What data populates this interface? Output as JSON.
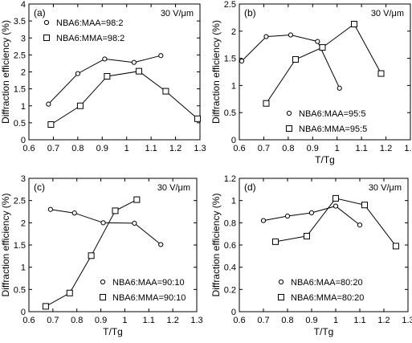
{
  "chart_data": [
    {
      "type": "line",
      "panel_label": "(a)",
      "annotation": "30 V/μm",
      "xlabel": "",
      "ylabel": "Diffraction efficiency (%)",
      "xlim": [
        0.6,
        1.3
      ],
      "ylim": [
        0,
        4
      ],
      "xticks": [
        "0.6",
        "0.7",
        "0.8",
        "0.9",
        "1",
        "1.1",
        "1.2",
        "1.3"
      ],
      "yticks": [
        "0",
        "0.5",
        "1",
        "1.5",
        "2",
        "2.5",
        "3",
        "3.5",
        "4"
      ],
      "legend_position": "top-left",
      "series": [
        {
          "name": "NBA6:MAA=98:2",
          "marker": "circle",
          "x": [
            0.68,
            0.8,
            0.91,
            1.03,
            1.14
          ],
          "y": [
            1.05,
            1.95,
            2.38,
            2.28,
            2.48
          ]
        },
        {
          "name": "NBA6:MMA=98:2",
          "marker": "square",
          "x": [
            0.69,
            0.81,
            0.92,
            1.05,
            1.16,
            1.29
          ],
          "y": [
            0.45,
            1.0,
            1.87,
            2.02,
            1.43,
            0.62
          ]
        }
      ]
    },
    {
      "type": "line",
      "panel_label": "(b)",
      "annotation": "30 V/μm",
      "xlabel": "T/Tg",
      "ylabel": "Diffraction efficiency (%)",
      "xlim": [
        0.6,
        1.3
      ],
      "ylim": [
        0,
        2.5
      ],
      "xticks": [
        "0.6",
        "0.7",
        "0.8",
        "0.9",
        "1",
        "1.1",
        "1.2",
        "1.3"
      ],
      "yticks": [
        "0",
        "0.5",
        "1",
        "1.5",
        "2",
        "2.5"
      ],
      "legend_position": "bottom-right",
      "series": [
        {
          "name": "NBA6:MAA=95:5",
          "marker": "circle",
          "x": [
            0.61,
            0.71,
            0.81,
            0.92,
            1.01
          ],
          "y": [
            1.45,
            1.9,
            1.93,
            1.81,
            0.95
          ]
        },
        {
          "name": "NBA6:MMA=95:5",
          "marker": "square",
          "x": [
            0.71,
            0.83,
            0.94,
            1.07,
            1.18
          ],
          "y": [
            0.67,
            1.48,
            1.7,
            2.13,
            1.22
          ]
        }
      ]
    },
    {
      "type": "line",
      "panel_label": "(c)",
      "annotation": "30 V/μm",
      "xlabel": "T/Tg",
      "ylabel": "Diffraction efficiency (%)",
      "xlim": [
        0.6,
        1.3
      ],
      "ylim": [
        0,
        3
      ],
      "xticks": [
        "0.6",
        "0.7",
        "0.8",
        "0.9",
        "1",
        "1.1",
        "1.2",
        "1.3"
      ],
      "yticks": [
        "0",
        "0.5",
        "1",
        "1.5",
        "2",
        "2.5",
        "3"
      ],
      "legend_position": "bottom-right",
      "series": [
        {
          "name": "NBA6:MAA=90:10",
          "marker": "circle",
          "x": [
            0.69,
            0.79,
            0.91,
            1.04,
            1.15
          ],
          "y": [
            2.3,
            2.22,
            2.0,
            1.99,
            1.51
          ]
        },
        {
          "name": "NBA6:MMA=90:10",
          "marker": "square",
          "x": [
            0.67,
            0.77,
            0.86,
            0.96,
            1.05
          ],
          "y": [
            0.12,
            0.42,
            1.26,
            2.27,
            2.52
          ]
        }
      ]
    },
    {
      "type": "line",
      "panel_label": "(d)",
      "annotation": "30 V/μm",
      "xlabel": "T/Tg",
      "ylabel": "Diffraction efficiency (%)",
      "xlim": [
        0.6,
        1.3
      ],
      "ylim": [
        0,
        1.2
      ],
      "xticks": [
        "0.6",
        "0.7",
        "0.8",
        "0.9",
        "1",
        "1.1",
        "1.2",
        "1.3"
      ],
      "yticks": [
        "0",
        "0.2",
        "0.4",
        "0.6",
        "0.8",
        "1",
        "1.2"
      ],
      "legend_position": "bottom-right",
      "series": [
        {
          "name": "NBA6:MAA=80:20",
          "marker": "circle",
          "x": [
            0.7,
            0.8,
            0.9,
            1.0,
            1.1
          ],
          "y": [
            0.82,
            0.86,
            0.89,
            0.95,
            0.78
          ]
        },
        {
          "name": "NBA6:MMA=80:20",
          "marker": "square",
          "x": [
            0.75,
            0.88,
            1.0,
            1.12,
            1.25
          ],
          "y": [
            0.63,
            0.68,
            1.02,
            0.96,
            0.59
          ]
        }
      ]
    }
  ]
}
